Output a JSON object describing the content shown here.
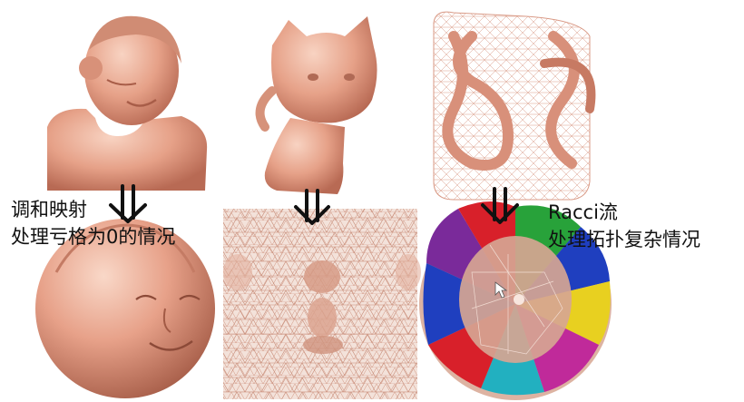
{
  "labels": {
    "left_line1": "调和映射",
    "left_line2": "处理亏格为0的情况",
    "right_line1": "Racci流",
    "right_line2": "处理拓扑复杂情况"
  },
  "colors": {
    "skin": "#e9a48c",
    "skin_dark": "#c77a63",
    "skin_light": "#f6cdbd",
    "wire": "#d8907a",
    "arrow": "#111111",
    "tile_blue": "#1f3fbf",
    "tile_red": "#d8202a",
    "tile_purple": "#7a2a9a",
    "tile_green": "#28a23a",
    "tile_yellow": "#e8d020",
    "tile_cyan": "#22b0c0",
    "tile_magenta": "#c02a9a"
  },
  "icons": {
    "arrow": "double-down-arrow-icon",
    "cursor": "mouse-cursor-icon"
  }
}
